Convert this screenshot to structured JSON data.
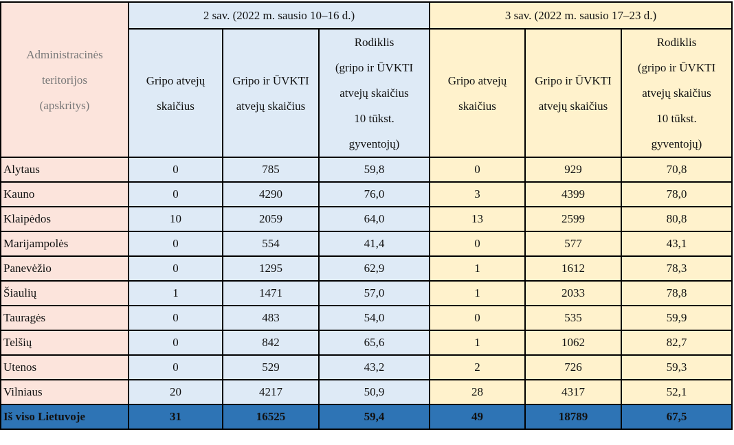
{
  "table": {
    "admin_header": [
      "Administracinės",
      "teritorijos",
      "(apskritys)"
    ],
    "week2_header": "2 sav. (2022 m. sausio 10–16 d.)",
    "week3_header": "3 sav. (2022 m. sausio 17–23 d.)",
    "col_flu": [
      "Gripo atvejų",
      "skaičius"
    ],
    "col_flu_ari": [
      "Gripo ir ŪVKTI",
      "atvejų skaičius"
    ],
    "col_rate": [
      "Rodiklis",
      "(gripo ir ŪVKTI",
      "atvejų skaičius",
      "10 tūkst.",
      "gyventojų)"
    ],
    "rows": [
      {
        "name": "Alytaus",
        "w2": [
          "0",
          "785",
          "59,8"
        ],
        "w3": [
          "0",
          "929",
          "70,8"
        ]
      },
      {
        "name": "Kauno",
        "w2": [
          "0",
          "4290",
          "76,0"
        ],
        "w3": [
          "3",
          "4399",
          "78,0"
        ]
      },
      {
        "name": "Klaipėdos",
        "w2": [
          "10",
          "2059",
          "64,0"
        ],
        "w3": [
          "13",
          "2599",
          "80,8"
        ]
      },
      {
        "name": "Marijampolės",
        "w2": [
          "0",
          "554",
          "41,4"
        ],
        "w3": [
          "0",
          "577",
          "43,1"
        ]
      },
      {
        "name": "Panevėžio",
        "w2": [
          "0",
          "1295",
          "62,9"
        ],
        "w3": [
          "1",
          "1612",
          "78,3"
        ]
      },
      {
        "name": "Šiaulių",
        "w2": [
          "1",
          "1471",
          "57,0"
        ],
        "w3": [
          "1",
          "2033",
          "78,8"
        ]
      },
      {
        "name": "Tauragės",
        "w2": [
          "0",
          "483",
          "54,0"
        ],
        "w3": [
          "0",
          "535",
          "59,9"
        ]
      },
      {
        "name": "Telšių",
        "w2": [
          "0",
          "842",
          "65,6"
        ],
        "w3": [
          "1",
          "1062",
          "82,7"
        ]
      },
      {
        "name": "Utenos",
        "w2": [
          "0",
          "529",
          "43,2"
        ],
        "w3": [
          "2",
          "726",
          "59,3"
        ]
      },
      {
        "name": "Vilniaus",
        "w2": [
          "20",
          "4217",
          "50,9"
        ],
        "w3": [
          "28",
          "4317",
          "52,1"
        ]
      }
    ],
    "total": {
      "name": "Iš viso Lietuvoje",
      "w2": [
        "31",
        "16525",
        "59,4"
      ],
      "w3": [
        "49",
        "18789",
        "67,5"
      ]
    }
  },
  "colors": {
    "admin_bg": "#fce4dc",
    "week2_bg": "#deeaf6",
    "week3_bg": "#fff2cc",
    "total_bg": "#2e74b5"
  }
}
